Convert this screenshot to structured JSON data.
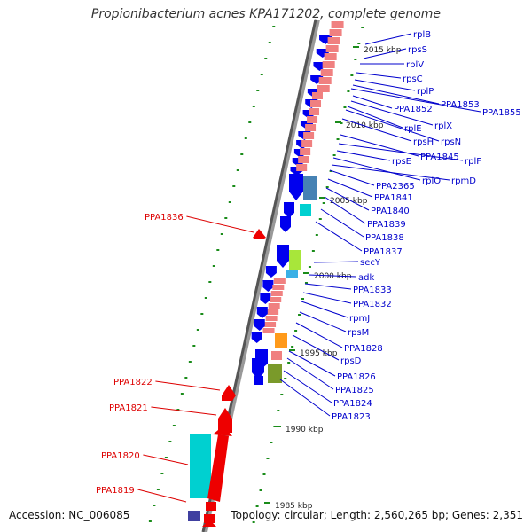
{
  "title": "Propionibacterium acnes KPA171202, complete genome",
  "footer": {
    "accession": "Accession: NC_006085",
    "topology": "Topology: circular; Length: 2,560,265 bp; Genes: 2,351"
  },
  "colors": {
    "cds_blue": "#0000ee",
    "rna_pink": "#f08080",
    "highlight_red": "#ee0000",
    "cyan": "#00d0d0",
    "label_blue": "#0000cc",
    "label_red": "#dd0000",
    "tick_green": "#1a8c1a"
  },
  "ruler_marks": [
    {
      "label": "2015 kbp"
    },
    {
      "label": "2010 kbp"
    },
    {
      "label": "2005 kbp"
    },
    {
      "label": "2000 kbp"
    },
    {
      "label": "1995 kbp"
    },
    {
      "label": "1990 kbp"
    },
    {
      "label": "1985 kbp"
    }
  ],
  "right_genes": [
    "rplB",
    "rpsS",
    "rplV",
    "rpsC",
    "rplP",
    "PPA1853",
    "PPA1855",
    "PPA1852",
    "rplX",
    "rplE",
    "rpsN",
    "rpsH",
    "PPA1845",
    "rplF",
    "rpsE",
    "rplO",
    "rpmD",
    "PPA2365",
    "PPA1841",
    "PPA1840",
    "PPA1839",
    "PPA1838",
    "PPA1837",
    "secY",
    "adk",
    "PPA1833",
    "PPA1832",
    "rpmJ",
    "rpsM",
    "PPA1828",
    "rpsD",
    "PPA1826",
    "PPA1825",
    "PPA1824",
    "PPA1823"
  ],
  "left_genes": [
    "PPA1836",
    "PPA1822",
    "PPA1821",
    "PPA1820",
    "PPA1819"
  ]
}
